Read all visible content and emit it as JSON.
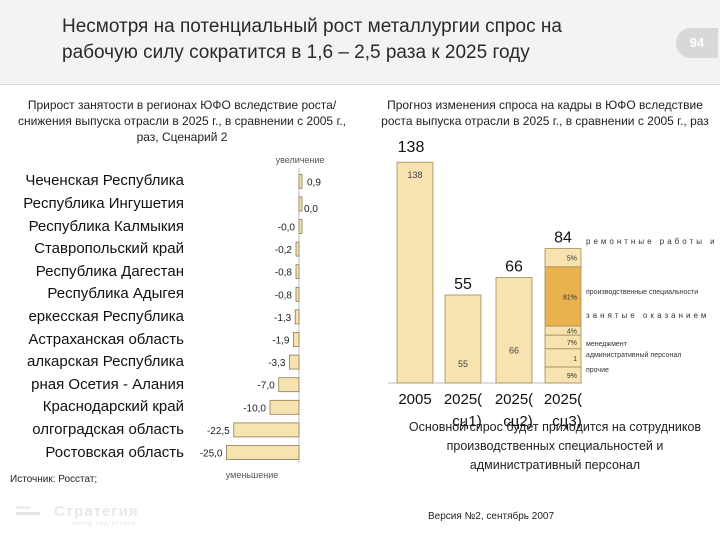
{
  "header": {
    "title": "Несмотря на потенциальный рост металлургии спрос на рабочую силу сократится в 1,6 – 2,5 раза к 2025 году",
    "page_number": "94"
  },
  "left_chart": {
    "subtitle": "Прирост занятости в регионах ЮФО вследствие роста/снижения выпуска отрасли в 2025 г., в сравнении с 2005 г., раз, Сценарий 2",
    "increase_label": "увеличение",
    "decrease_label": "уменьшение"
  },
  "right_chart": {
    "subtitle": "Прогноз изменения спроса на кадры в ЮФО вследствие роста выпуска отрасли в 2025 г., в сравнении с 2005 г., раз"
  },
  "chart_data": [
    {
      "type": "bar",
      "orientation": "horizontal",
      "title": "Прирост занятости в регионах ЮФО вследствие роста/снижения выпуска отрасли в 2025 г., в сравнении с 2005 г., раз, Сценарий 2",
      "categories": [
        "Чеченская Республика",
        "Республика Ингушетия",
        "Республика Калмыкия",
        "Ставропольский край",
        "Республика Дагестан",
        "Республика Адыгея",
        "Черкесская Республика",
        "Астраханская область",
        "Балкарская Республика",
        "Северная Осетия - Алания",
        "Краснодарский край",
        "Волгоградская область",
        "Ростовская область"
      ],
      "display_labels": [
        "Чеченская Республика",
        "Республика Ингушетия",
        "Республика Калмыкия",
        "Ставропольский край",
        "Республика Дагестан",
        "Республика Адыгея",
        "еркесская Республика",
        "Астраханская область",
        "алкарская Республика",
        "рная Осетия - Алания",
        "Краснодарский край",
        "олгоградская область",
        "Ростовская область"
      ],
      "values": [
        0.9,
        0.0,
        -0.0,
        -0.2,
        -0.8,
        -0.8,
        -1.3,
        -1.9,
        -3.3,
        -7.0,
        -10.0,
        -22.5,
        -25.0
      ],
      "value_labels": [
        "0,9",
        "0,0",
        "-0,0",
        "-0,2",
        "-0,8",
        "-0,8",
        "-1,3",
        "-1,9",
        "-3,3",
        "-7,0",
        "-10,0",
        "-22,5",
        "-25,0"
      ],
      "bar_color": "#f7e3b0",
      "xlabel": "",
      "ylabel": ""
    },
    {
      "type": "bar",
      "stacked": true,
      "title": "Прогноз изменения спроса на кадры в ЮФО вследствие роста выпуска отрасли в 2025 г., в сравнении с 2005 г., раз",
      "categories": [
        "2005",
        "2025( сц1)",
        "2025( сц2)",
        "2025( сц3)"
      ],
      "category_labels_line1": [
        "2005",
        "2025(",
        "2025(",
        "2025("
      ],
      "category_labels_line2": [
        "",
        "сц1)",
        "сц2)",
        "сц3)"
      ],
      "totals": [
        138,
        55,
        66,
        84
      ],
      "total_labels": [
        "138",
        "55",
        "66",
        "84"
      ],
      "inner_labels": [
        "138",
        "55",
        "66",
        ""
      ],
      "segments": [
        {
          "name": "ремонтные работы и",
          "pct_label": "5%",
          "share": 5
        },
        {
          "name": "производственные специальности",
          "pct_label": "81%",
          "share": 81
        },
        {
          "name": "занятые оказанием",
          "pct_label": "4%",
          "share": 4
        },
        {
          "name": "менеджмент",
          "pct_label": "7%",
          "share": 7
        },
        {
          "name": "административный персонал",
          "pct_label": "1",
          "share": 1
        },
        {
          "name": "прочие",
          "pct_label": "9%",
          "share": 9
        }
      ],
      "light_color": "#f7e3b0",
      "dark_color": "#e9b24e",
      "xlabel": "",
      "ylabel": ""
    }
  ],
  "note": "Основной спрос будет приходится на сотрудников производственных специальностей и административный персонал",
  "source": "Источник: Росстат;",
  "version": "Версия №2, сентябрь 2007",
  "logo": {
    "name": "Стратегия",
    "tagline": "центр подготовки"
  }
}
